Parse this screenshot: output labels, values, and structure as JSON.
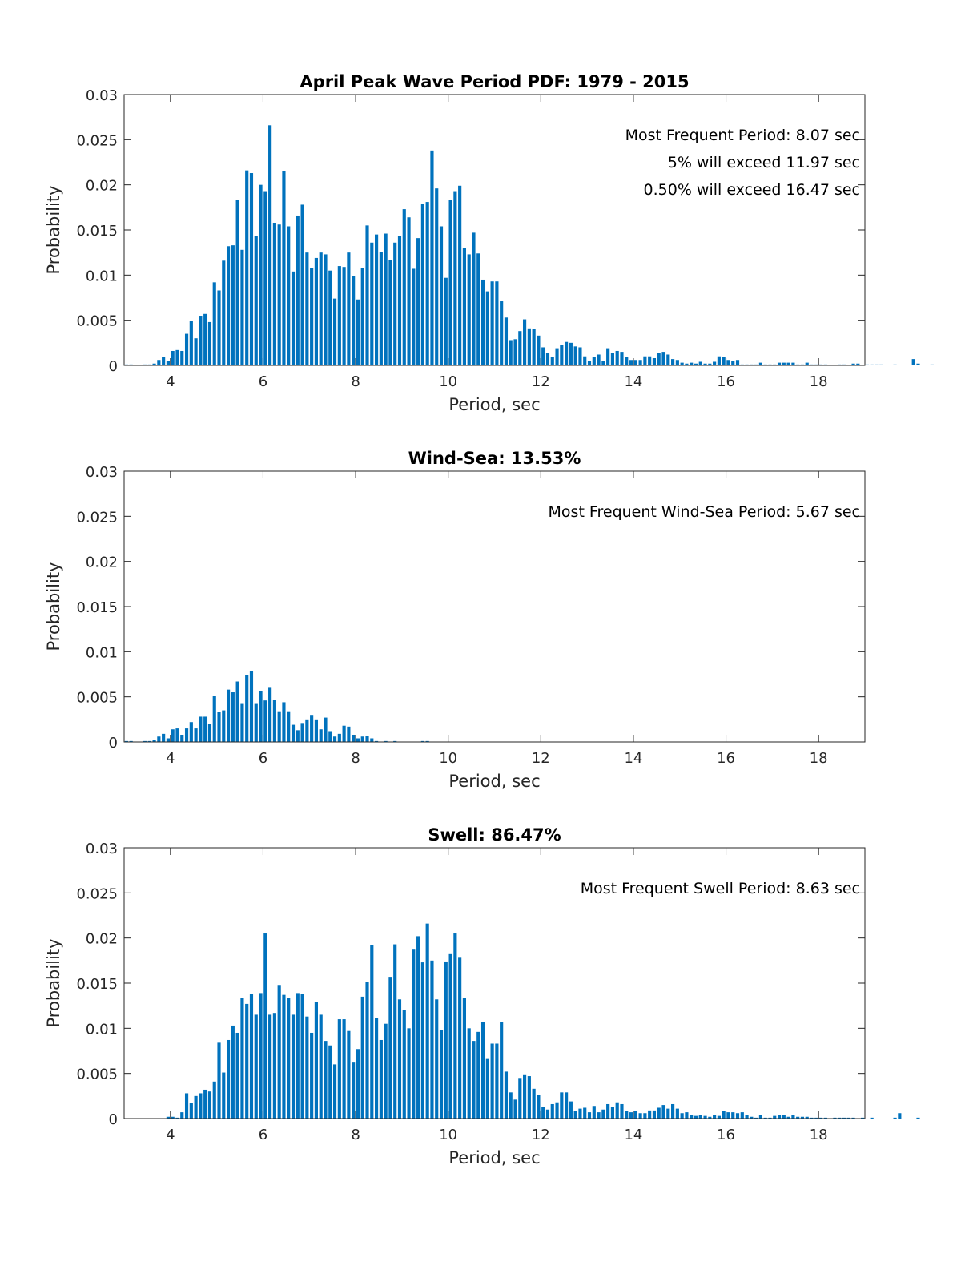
{
  "chart_data": [
    {
      "type": "bar",
      "title": "April Peak Wave Period PDF: 1979 - 2015",
      "xlabel": "Period, sec",
      "ylabel": "Probability",
      "xlim": [
        3,
        19
      ],
      "ylim": [
        0,
        0.03
      ],
      "xticks": [
        "4",
        "6",
        "8",
        "10",
        "12",
        "14",
        "16",
        "18"
      ],
      "yticks": [
        "0",
        "0.005",
        "0.01",
        "0.015",
        "0.02",
        "0.025",
        "0.03"
      ],
      "annotations": [
        "Most Frequent Period: 8.07 sec",
        "5% will exceed 11.97 sec",
        "0.50% will exceed 16.47 sec"
      ],
      "bin_start": 3.0,
      "bin_width": 0.1,
      "values": [
        0.0001,
        0.0001,
        0,
        0,
        0.0001,
        0.0001,
        0.0002,
        0.0006,
        0.0009,
        0.0005,
        0.0016,
        0.0017,
        0.0016,
        0.0035,
        0.0049,
        0.003,
        0.0055,
        0.0057,
        0.0048,
        0.0092,
        0.0083,
        0.0116,
        0.0132,
        0.0133,
        0.0183,
        0.0128,
        0.0216,
        0.0213,
        0.0143,
        0.02,
        0.0193,
        0.0266,
        0.0158,
        0.0156,
        0.0215,
        0.0154,
        0.0104,
        0.0166,
        0.0178,
        0.0125,
        0.0108,
        0.0119,
        0.0125,
        0.0123,
        0.0105,
        0.0074,
        0.011,
        0.0109,
        0.0125,
        0.0099,
        0.0073,
        0.0108,
        0.0155,
        0.0136,
        0.0145,
        0.0126,
        0.0146,
        0.0117,
        0.0136,
        0.0143,
        0.0173,
        0.0164,
        0.0107,
        0.0141,
        0.0179,
        0.0181,
        0.0238,
        0.0196,
        0.0154,
        0.0097,
        0.0183,
        0.0193,
        0.0199,
        0.013,
        0.0123,
        0.0147,
        0.0124,
        0.0095,
        0.0082,
        0.0093,
        0.0093,
        0.0071,
        0.0053,
        0.0028,
        0.0029,
        0.0038,
        0.0051,
        0.0041,
        0.004,
        0.0033,
        0.002,
        0.0014,
        0.0009,
        0.0019,
        0.0023,
        0.0026,
        0.0025,
        0.0021,
        0.002,
        0.001,
        0.0005,
        0.0009,
        0.0012,
        0.0005,
        0.0019,
        0.0014,
        0.0016,
        0.0015,
        0.0009,
        0.0006,
        0.0006,
        0.0006,
        0.001,
        0.001,
        0.0008,
        0.0014,
        0.0015,
        0.0012,
        0.0007,
        0.0006,
        0.0003,
        0.0002,
        0.0003,
        0.0002,
        0.0004,
        0.0002,
        0.0002,
        0.0004,
        0.001,
        0.0009,
        0.0006,
        0.0005,
        0.0006,
        0.0001,
        0.0001,
        0.0001,
        0.0001,
        0.0003,
        0.0001,
        0.0001,
        0.0001,
        0.0003,
        0.0003,
        0.0003,
        0.0003,
        0.0001,
        0.0001,
        0.0003,
        0.0001,
        0.0001,
        0.0001,
        0.0001,
        0,
        0,
        0.0001,
        0.0001,
        0,
        0.0002,
        0.0002,
        0,
        0.0001,
        0.0001,
        0.0001,
        0.0001,
        0,
        0,
        0.0001,
        0,
        0,
        0,
        0.0007,
        0.0002,
        0,
        0,
        0.0001,
        0,
        0
      ]
    },
    {
      "type": "bar",
      "title": "Wind-Sea: 13.53%",
      "xlabel": "Period, sec",
      "ylabel": "Probability",
      "xlim": [
        3,
        19
      ],
      "ylim": [
        0,
        0.03
      ],
      "xticks": [
        "4",
        "6",
        "8",
        "10",
        "12",
        "14",
        "16",
        "18"
      ],
      "yticks": [
        "0",
        "0.005",
        "0.01",
        "0.015",
        "0.02",
        "0.025",
        "0.03"
      ],
      "annotations": [
        "Most Frequent Wind-Sea Period: 5.67 sec"
      ],
      "bin_start": 3.0,
      "bin_width": 0.1,
      "values": [
        0.0001,
        0.0001,
        0,
        0,
        0.0001,
        0.0001,
        0.0002,
        0.0006,
        0.0009,
        0.0004,
        0.0014,
        0.0015,
        0.0008,
        0.0015,
        0.0022,
        0.0015,
        0.0028,
        0.0028,
        0.002,
        0.0051,
        0.0033,
        0.0035,
        0.0058,
        0.0055,
        0.0067,
        0.0043,
        0.0074,
        0.0079,
        0.0043,
        0.0056,
        0.0046,
        0.006,
        0.0047,
        0.0034,
        0.0044,
        0.0034,
        0.0019,
        0.0013,
        0.0021,
        0.0025,
        0.003,
        0.0025,
        0.0014,
        0.0027,
        0.0012,
        0.0006,
        0.0009,
        0.0018,
        0.0017,
        0.0008,
        0.0004,
        0.0006,
        0.0007,
        0.0004,
        0.0001,
        0,
        0.0001,
        0,
        0.0001,
        0,
        0,
        0,
        0,
        0,
        0.0001,
        0.0001,
        0,
        0,
        0,
        0,
        0,
        0,
        0,
        0,
        0,
        0,
        0,
        0,
        0,
        0,
        0,
        0,
        0,
        0,
        0,
        0,
        0,
        0,
        0,
        0,
        0,
        0,
        0,
        0,
        0,
        0,
        0,
        0,
        0,
        0,
        0,
        0,
        0,
        0,
        0,
        0,
        0,
        0,
        0,
        0,
        0,
        0,
        0,
        0,
        0,
        0,
        0,
        0,
        0,
        0,
        0,
        0,
        0,
        0,
        0,
        0,
        0,
        0,
        0,
        0,
        0,
        0,
        0,
        0,
        0,
        0,
        0,
        0,
        0,
        0,
        0,
        0,
        0,
        0,
        0,
        0,
        0,
        0,
        0,
        0,
        0,
        0,
        0,
        0,
        0,
        0,
        0,
        0,
        0,
        0,
        0,
        0,
        0,
        0,
        0,
        0,
        0,
        0,
        0,
        0,
        0,
        0,
        0,
        0
      ]
    },
    {
      "type": "bar",
      "title": "Swell: 86.47%",
      "xlabel": "Period, sec",
      "ylabel": "Probability",
      "xlim": [
        3,
        19
      ],
      "ylim": [
        0,
        0.03
      ],
      "xticks": [
        "4",
        "6",
        "8",
        "10",
        "12",
        "14",
        "16",
        "18"
      ],
      "yticks": [
        "0",
        "0.005",
        "0.01",
        "0.015",
        "0.02",
        "0.025",
        "0.03"
      ],
      "annotations": [
        "Most Frequent Swell Period: 8.63 sec"
      ],
      "bin_start": 3.0,
      "bin_width": 0.1,
      "values": [
        0,
        0,
        0,
        0,
        0,
        0,
        0,
        0,
        0,
        0.0002,
        0.0002,
        0.0001,
        0.0007,
        0.0028,
        0.0017,
        0.0025,
        0.0028,
        0.0032,
        0.003,
        0.0041,
        0.0084,
        0.0051,
        0.0087,
        0.0103,
        0.0095,
        0.0134,
        0.0127,
        0.0138,
        0.0115,
        0.0139,
        0.0205,
        0.0115,
        0.0117,
        0.0148,
        0.0137,
        0.0134,
        0.0115,
        0.0139,
        0.0138,
        0.0113,
        0.0095,
        0.0129,
        0.0115,
        0.0086,
        0.0081,
        0.006,
        0.011,
        0.011,
        0.0097,
        0.0062,
        0.0077,
        0.0135,
        0.0151,
        0.0192,
        0.0111,
        0.0087,
        0.0105,
        0.0157,
        0.0193,
        0.0132,
        0.012,
        0.01,
        0.0188,
        0.0202,
        0.0173,
        0.0216,
        0.0175,
        0.0132,
        0.0098,
        0.0174,
        0.0183,
        0.0205,
        0.0179,
        0.0134,
        0.01,
        0.0086,
        0.0096,
        0.0107,
        0.0066,
        0.0083,
        0.0083,
        0.0107,
        0.0052,
        0.0029,
        0.0021,
        0.0045,
        0.0049,
        0.0047,
        0.0033,
        0.0026,
        0.0013,
        0.001,
        0.0016,
        0.0018,
        0.0029,
        0.0029,
        0.0019,
        0.0008,
        0.0011,
        0.0012,
        0.0007,
        0.0014,
        0.0007,
        0.001,
        0.0016,
        0.0013,
        0.0018,
        0.0016,
        0.0008,
        0.0007,
        0.0008,
        0.0006,
        0.0006,
        0.0009,
        0.0009,
        0.0012,
        0.0015,
        0.0011,
        0.0016,
        0.0011,
        0.0006,
        0.0007,
        0.0004,
        0.0003,
        0.0004,
        0.0003,
        0.0002,
        0.0004,
        0.0003,
        0.0008,
        0.0007,
        0.0007,
        0.0006,
        0.0007,
        0.0004,
        0.0002,
        0.0001,
        0.0004,
        0.0001,
        0.0001,
        0.0003,
        0.0004,
        0.0004,
        0.0002,
        0.0004,
        0.0002,
        0.0002,
        0.0002,
        0.0001,
        0.0001,
        0.0001,
        0.0001,
        0,
        0.0001,
        0.0001,
        0.0001,
        0.0001,
        0.0001,
        0,
        0.0001,
        0,
        0.0001,
        0,
        0,
        0,
        0,
        0.0001,
        0.0006,
        0,
        0,
        0,
        0.0001,
        0,
        0
      ]
    }
  ]
}
